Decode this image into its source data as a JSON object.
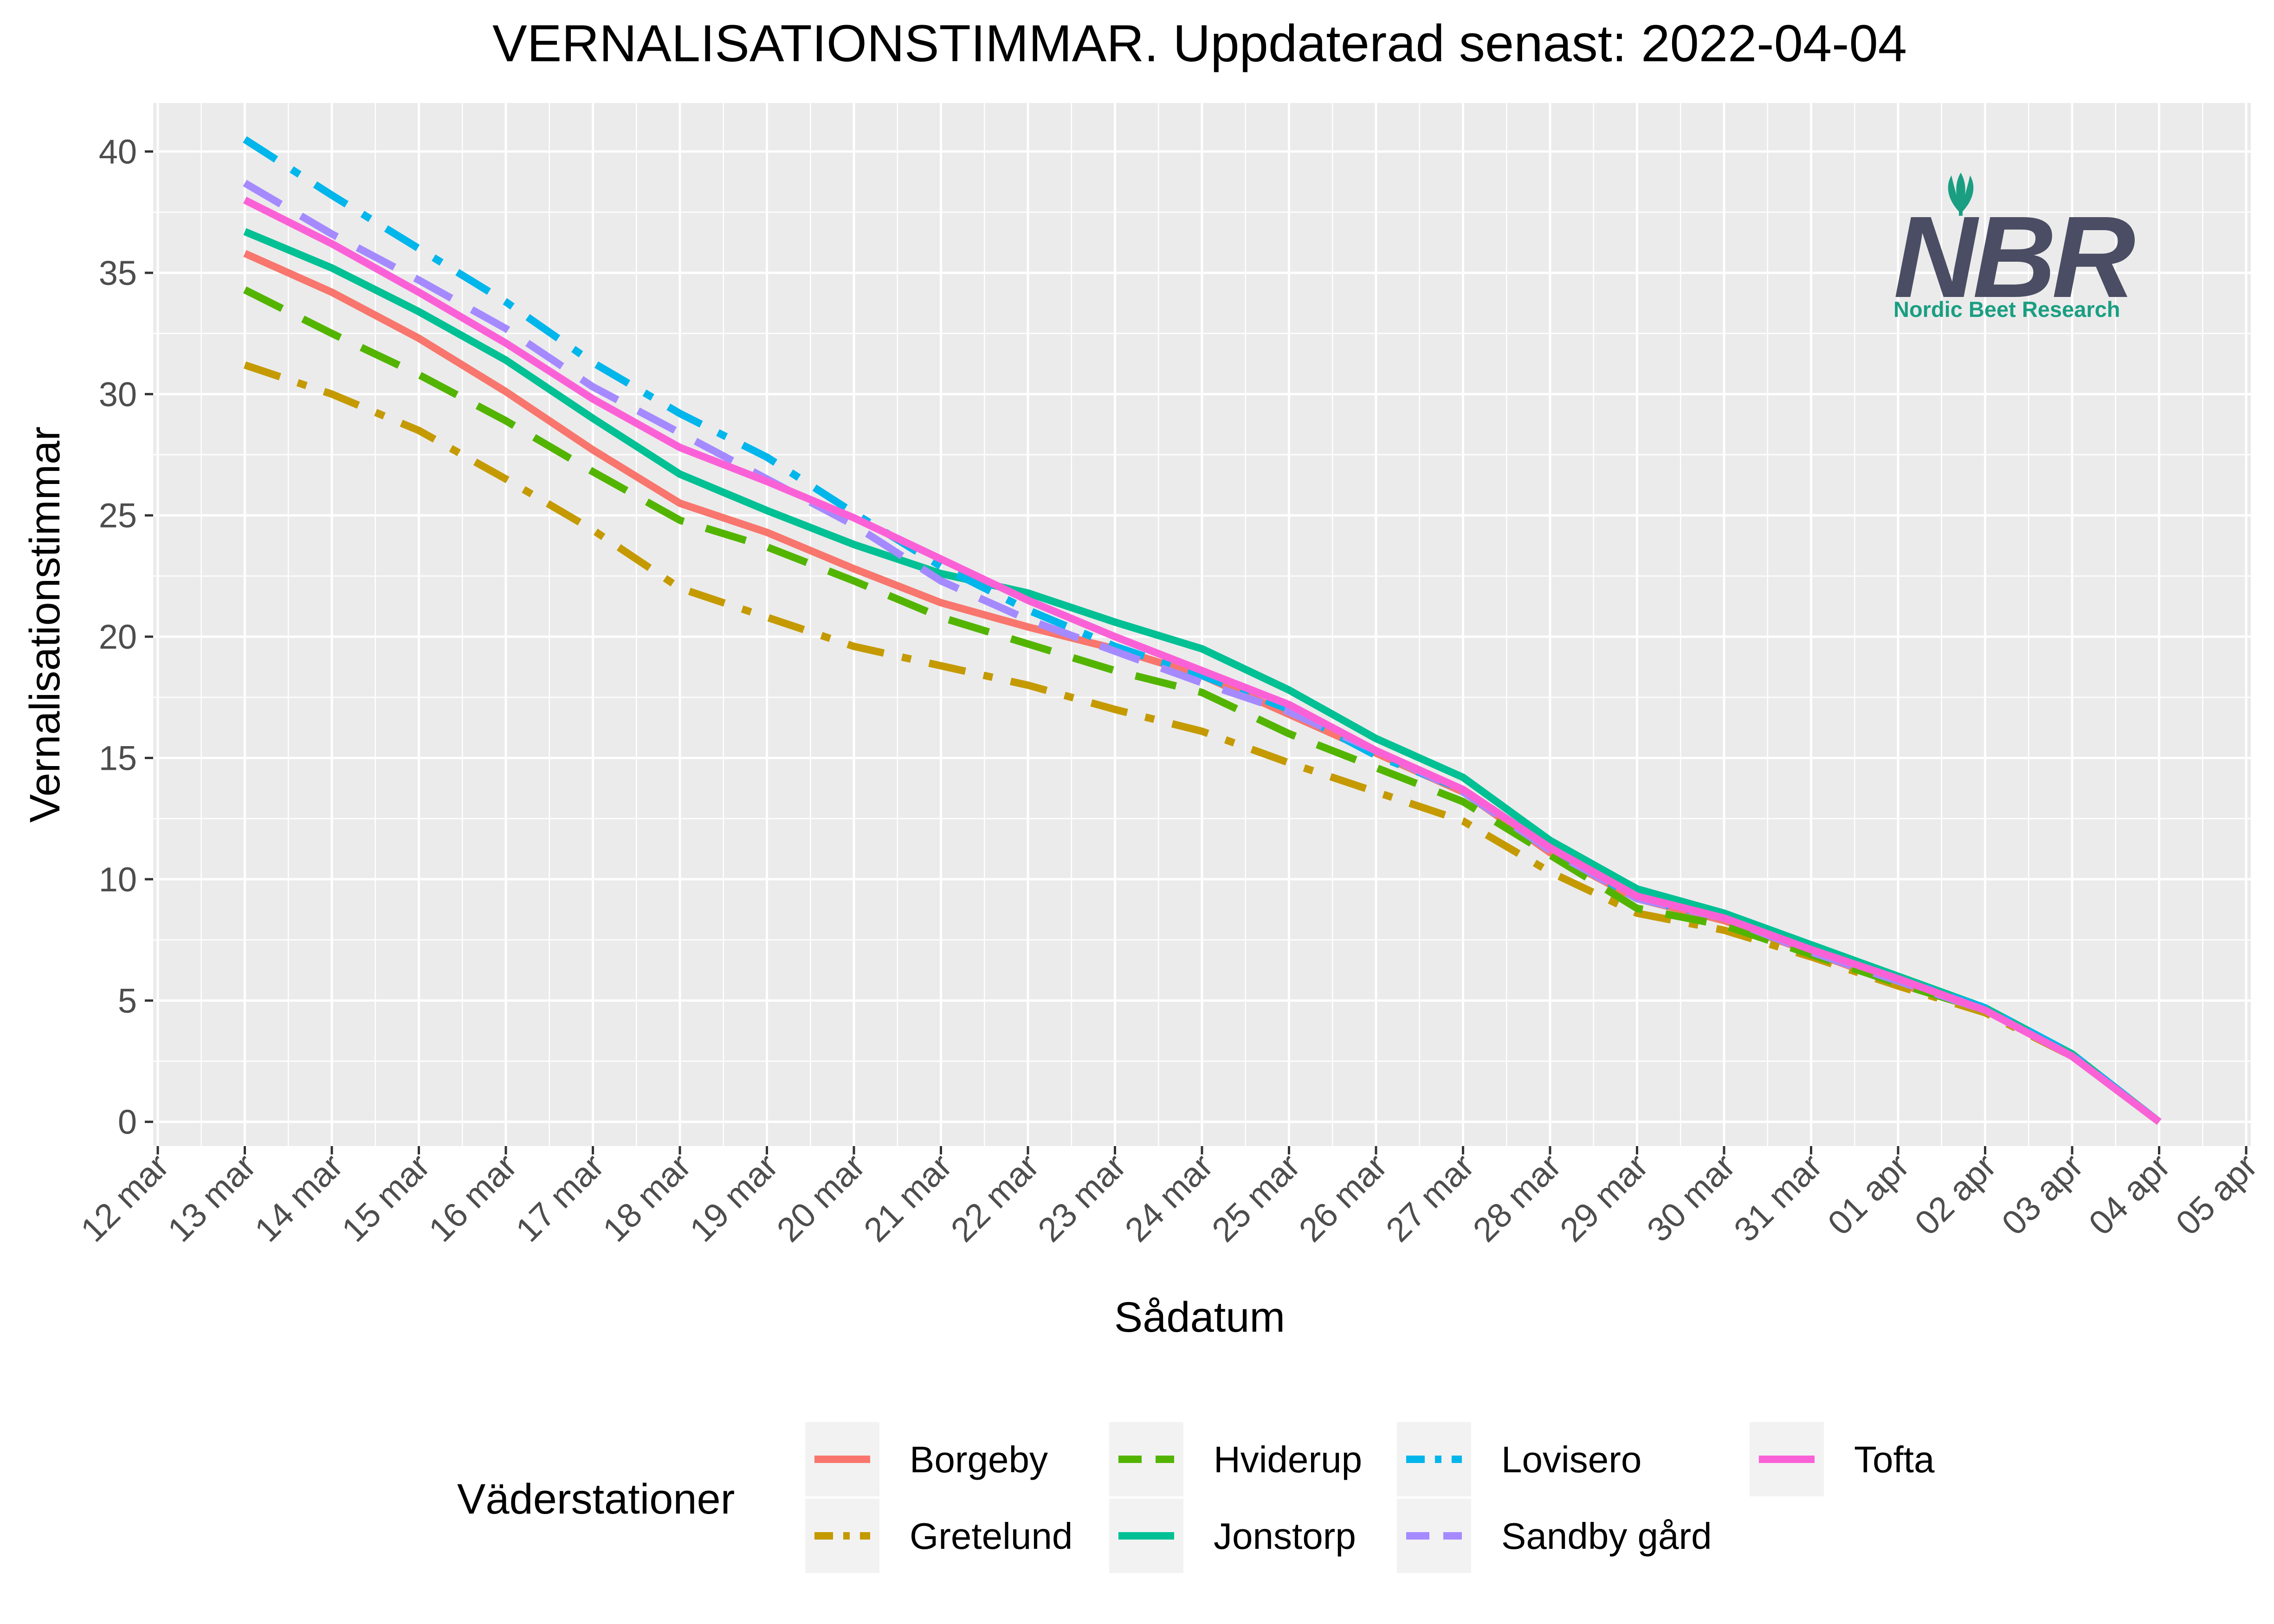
{
  "chart_data": {
    "type": "line",
    "title": "VERNALISATIONSTIMMAR. Uppdaterad senast:  2022-04-04",
    "xlabel": "Sådatum",
    "ylabel": "Vernalisationstimmar",
    "x_ticks": [
      "12 mar",
      "13 mar",
      "14 mar",
      "15 mar",
      "16 mar",
      "17 mar",
      "18 mar",
      "19 mar",
      "20 mar",
      "21 mar",
      "22 mar",
      "23 mar",
      "24 mar",
      "25 mar",
      "26 mar",
      "27 mar",
      "28 mar",
      "29 mar",
      "30 mar",
      "31 mar",
      "01 apr",
      "02 apr",
      "03 apr",
      "04 apr",
      "05 apr"
    ],
    "y_ticks": [
      0,
      5,
      10,
      15,
      20,
      25,
      30,
      35,
      40
    ],
    "ylim": [
      -1,
      42
    ],
    "grid": true,
    "legend": {
      "title": "Väderstationer",
      "position": "bottom"
    },
    "x": [
      "13 mar",
      "14 mar",
      "15 mar",
      "16 mar",
      "17 mar",
      "18 mar",
      "19 mar",
      "20 mar",
      "21 mar",
      "22 mar",
      "23 mar",
      "24 mar",
      "25 mar",
      "26 mar",
      "27 mar",
      "28 mar",
      "29 mar",
      "30 mar",
      "31 mar",
      "01 apr",
      "02 apr",
      "03 apr",
      "04 apr"
    ],
    "series": [
      {
        "name": "Borgeby",
        "color": "#F8766D",
        "dash": "solid",
        "values": [
          35.8,
          34.2,
          32.3,
          30.1,
          27.7,
          25.5,
          24.3,
          22.8,
          21.4,
          20.4,
          19.5,
          18.4,
          16.8,
          15.2,
          13.6,
          11.1,
          9.2,
          8.3,
          7.0,
          5.7,
          4.6,
          2.7,
          0
        ]
      },
      {
        "name": "Gretelund",
        "color": "#C49A00",
        "dash": "dashdot",
        "values": [
          31.2,
          30.0,
          28.5,
          26.5,
          24.4,
          22.0,
          20.8,
          19.6,
          18.8,
          18.0,
          17.0,
          16.1,
          14.8,
          13.6,
          12.4,
          10.3,
          8.6,
          7.9,
          6.8,
          5.6,
          4.5,
          2.7,
          0
        ]
      },
      {
        "name": "Hviderup",
        "color": "#53B400",
        "dash": "longdash",
        "values": [
          34.3,
          32.5,
          30.8,
          28.9,
          26.8,
          24.8,
          23.7,
          22.3,
          20.8,
          19.7,
          18.6,
          17.7,
          16.0,
          14.6,
          13.2,
          11.0,
          8.8,
          8.1,
          6.9,
          5.7,
          4.6,
          2.7,
          0
        ]
      },
      {
        "name": "Jonstorp",
        "color": "#00C094",
        "dash": "solid",
        "values": [
          36.7,
          35.2,
          33.4,
          31.4,
          29.0,
          26.7,
          25.2,
          23.8,
          22.6,
          21.8,
          20.6,
          19.5,
          17.8,
          15.8,
          14.2,
          11.6,
          9.6,
          8.6,
          7.3,
          6.0,
          4.7,
          2.8,
          0
        ]
      },
      {
        "name": "Lovisero",
        "color": "#00B6EB",
        "dash": "dashdot",
        "values": [
          40.5,
          38.2,
          36.0,
          33.8,
          31.3,
          29.2,
          27.4,
          25.1,
          22.9,
          21.1,
          19.6,
          18.4,
          17.0,
          15.1,
          13.7,
          11.3,
          9.2,
          8.4,
          7.1,
          5.9,
          4.7,
          2.8,
          0
        ]
      },
      {
        "name": "Sandby gård",
        "color": "#A58AFF",
        "dash": "longdash",
        "values": [
          38.7,
          36.6,
          34.7,
          32.7,
          30.3,
          28.4,
          26.5,
          24.6,
          22.3,
          20.7,
          19.4,
          18.1,
          16.9,
          15.3,
          13.6,
          11.2,
          9.2,
          8.4,
          7.0,
          5.8,
          4.6,
          2.7,
          0
        ]
      },
      {
        "name": "Tofta",
        "color": "#FB61D7",
        "dash": "solid",
        "values": [
          38.0,
          36.2,
          34.2,
          32.1,
          29.8,
          27.8,
          26.4,
          24.9,
          23.2,
          21.5,
          20.0,
          18.6,
          17.2,
          15.3,
          13.7,
          11.3,
          9.3,
          8.4,
          7.1,
          5.9,
          4.6,
          2.7,
          0
        ]
      }
    ]
  },
  "logo": {
    "mark": "NBR",
    "caption": "Nordic Beet Research",
    "mark_color": "#4a4d63",
    "caption_color": "#1a9e82"
  }
}
